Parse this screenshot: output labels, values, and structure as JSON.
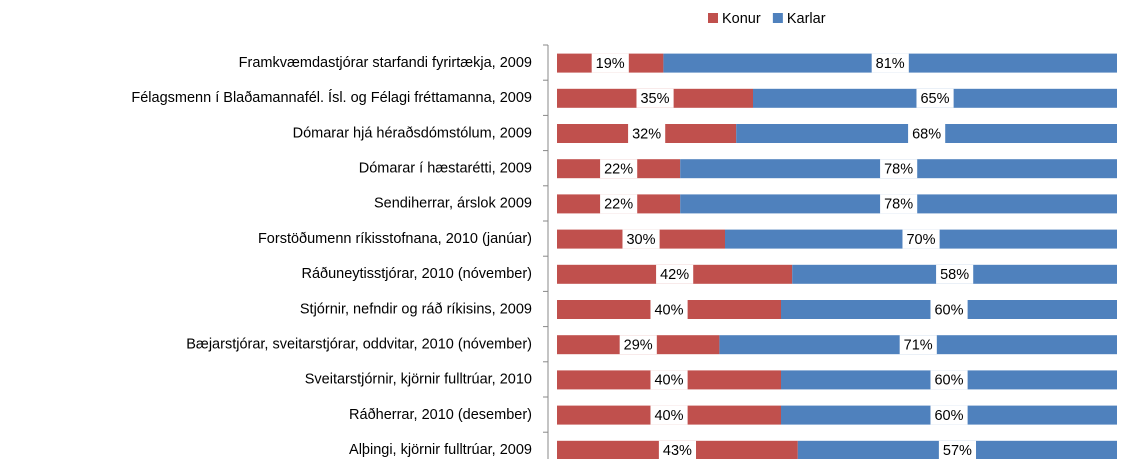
{
  "chart_data": {
    "type": "stacked-bar-horizontal",
    "categories": [
      "Framkvæmdastjórar starfandi fyrirtækja,  2009",
      "Félagsmenn í Blaðamannafél. Ísl. og Félagi fréttamanna,  2009",
      "Dómarar hjá héraðsdómstólum,  2009",
      "Dómarar í hæstarétti,  2009",
      "Sendiherrar,  árslok 2009",
      "Forstöðumenn ríkisstofnana,  2010 (janúar)",
      "Ráðuneytisstjórar,  2010 (nóvember)",
      "Stjórnir, nefndir og ráð ríkisins,  2009",
      "Bæjarstjórar, sveitarstjórar, oddvitar,  2010 (nóvember)",
      "Sveitarstjórnir, kjörnir fulltrúar,  2010",
      "Ráðherrar, 2010 (desember)",
      "Alþingi, kjörnir fulltrúar,  2009"
    ],
    "series": [
      {
        "name": "Konur",
        "color": "#c0504d",
        "values": [
          19,
          35,
          32,
          22,
          22,
          30,
          42,
          40,
          29,
          40,
          40,
          43
        ],
        "value_labels": [
          "19%",
          "35%",
          "32%",
          "22%",
          "22%",
          "30%",
          "42%",
          "40%",
          "29%",
          "40%",
          "40%",
          "43%"
        ]
      },
      {
        "name": "Karlar",
        "color": "#4f81bd",
        "values": [
          81,
          65,
          68,
          78,
          78,
          70,
          58,
          60,
          71,
          60,
          60,
          57
        ],
        "value_labels": [
          "81%",
          "65%",
          "68%",
          "78%",
          "78%",
          "70%",
          "58%",
          "60%",
          "71%",
          "60%",
          "60%",
          "57%"
        ]
      }
    ],
    "legend": "top"
  }
}
